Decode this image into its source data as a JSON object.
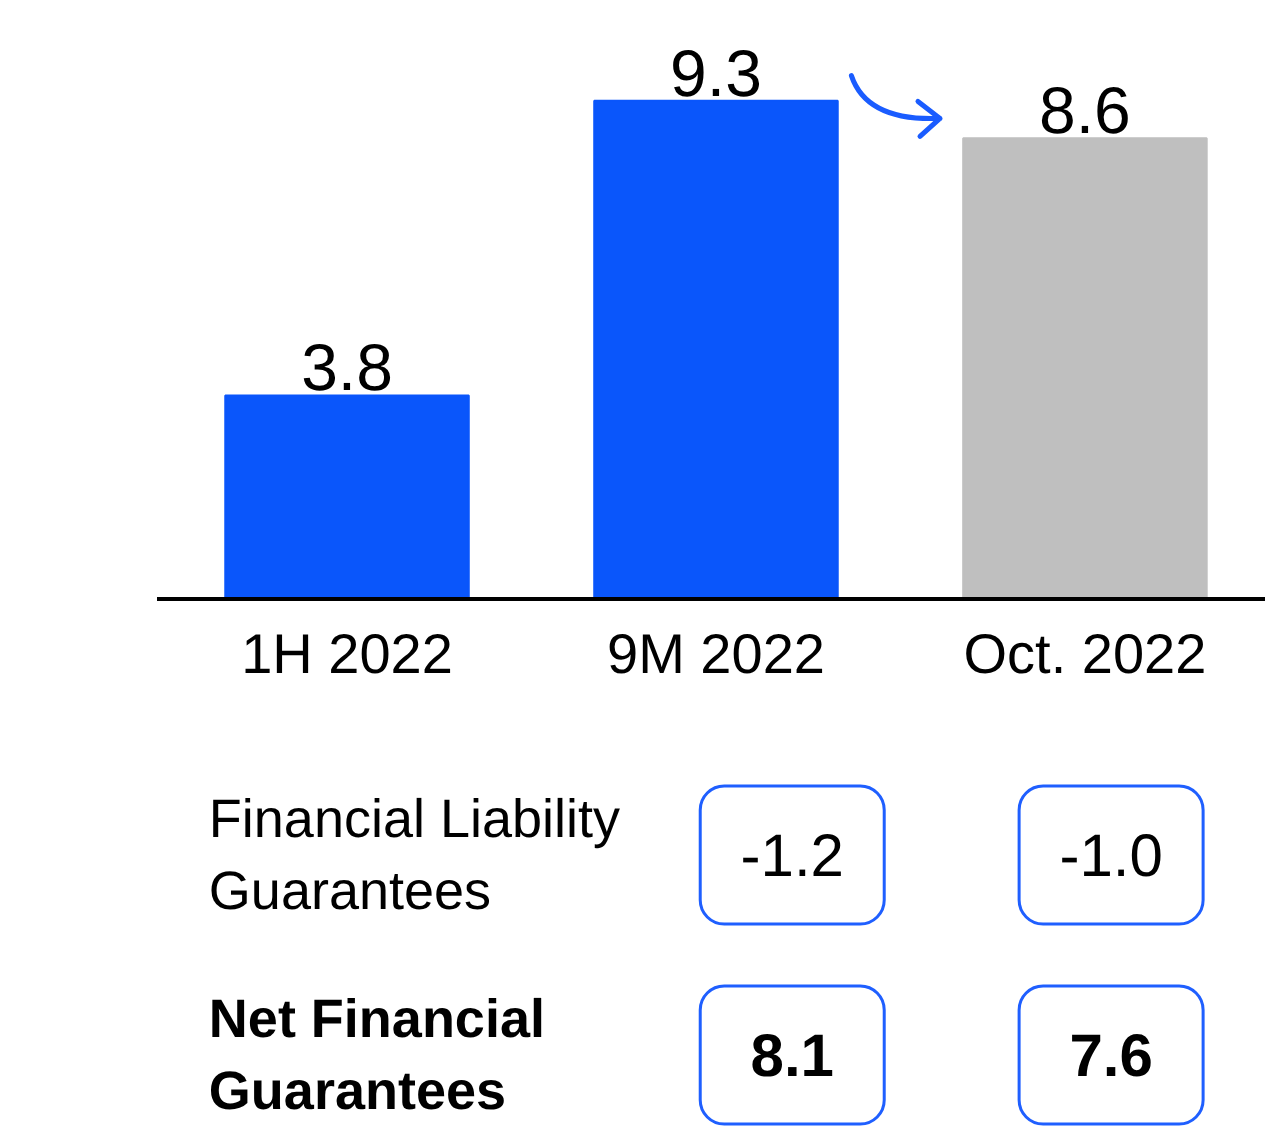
{
  "chart_data": {
    "type": "bar",
    "categories": [
      "1H 2022",
      "9M 2022",
      "Oct. 2022"
    ],
    "values": [
      3.8,
      9.3,
      8.6
    ],
    "colors": [
      "#0a56fb",
      "#0a56fb",
      "#bfbfbf"
    ],
    "data_labels": true,
    "tick_labels": "x",
    "annotations": [
      "Financial Liability Guarantees",
      "-1.2",
      "-1.0",
      "Net Financial Guarantees",
      "8.1",
      "7.6"
    ]
  }
}
